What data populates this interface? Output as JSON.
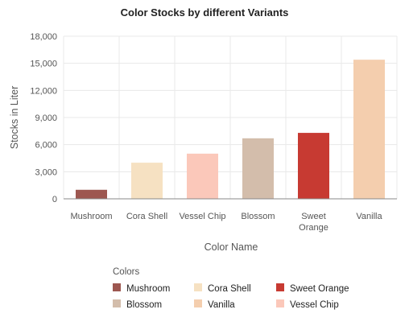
{
  "chart_data": {
    "type": "bar",
    "title": "Color Stocks by different Variants",
    "xlabel": "Color Name",
    "ylabel": "Stocks in Liter",
    "categories": [
      "Mushroom",
      "Cora Shell",
      "Vessel Chip",
      "Blossom",
      "Sweet Orange",
      "Vanilla"
    ],
    "category_lines": [
      [
        "Mushroom"
      ],
      [
        "Cora Shell"
      ],
      [
        "Vessel Chip"
      ],
      [
        "Blossom"
      ],
      [
        "Sweet",
        "Orange"
      ],
      [
        "Vanilla"
      ]
    ],
    "values": [
      1000,
      4000,
      5000,
      6700,
      7300,
      15400
    ],
    "colors": [
      "#9d5750",
      "#f6e1c2",
      "#fbc8ba",
      "#d3bdab",
      "#c73a32",
      "#f4ceae"
    ],
    "ylim": [
      0,
      18000
    ],
    "yticks": [
      0,
      3000,
      6000,
      9000,
      12000,
      15000,
      18000
    ],
    "ytick_labels": [
      "0",
      "3,000",
      "6,000",
      "9,000",
      "12,000",
      "15,000",
      "18,000"
    ],
    "grid": true,
    "legend": {
      "title": "Colors",
      "placement": "bottom",
      "entries": [
        {
          "label": "Mushroom",
          "color": "#9d5750"
        },
        {
          "label": "Cora Shell",
          "color": "#f6e1c2"
        },
        {
          "label": "Sweet Orange",
          "color": "#c73a32"
        },
        {
          "label": "Blossom",
          "color": "#d3bdab"
        },
        {
          "label": "Vanilla",
          "color": "#f4ceae"
        },
        {
          "label": "Vessel Chip",
          "color": "#fbc8ba"
        }
      ]
    }
  }
}
